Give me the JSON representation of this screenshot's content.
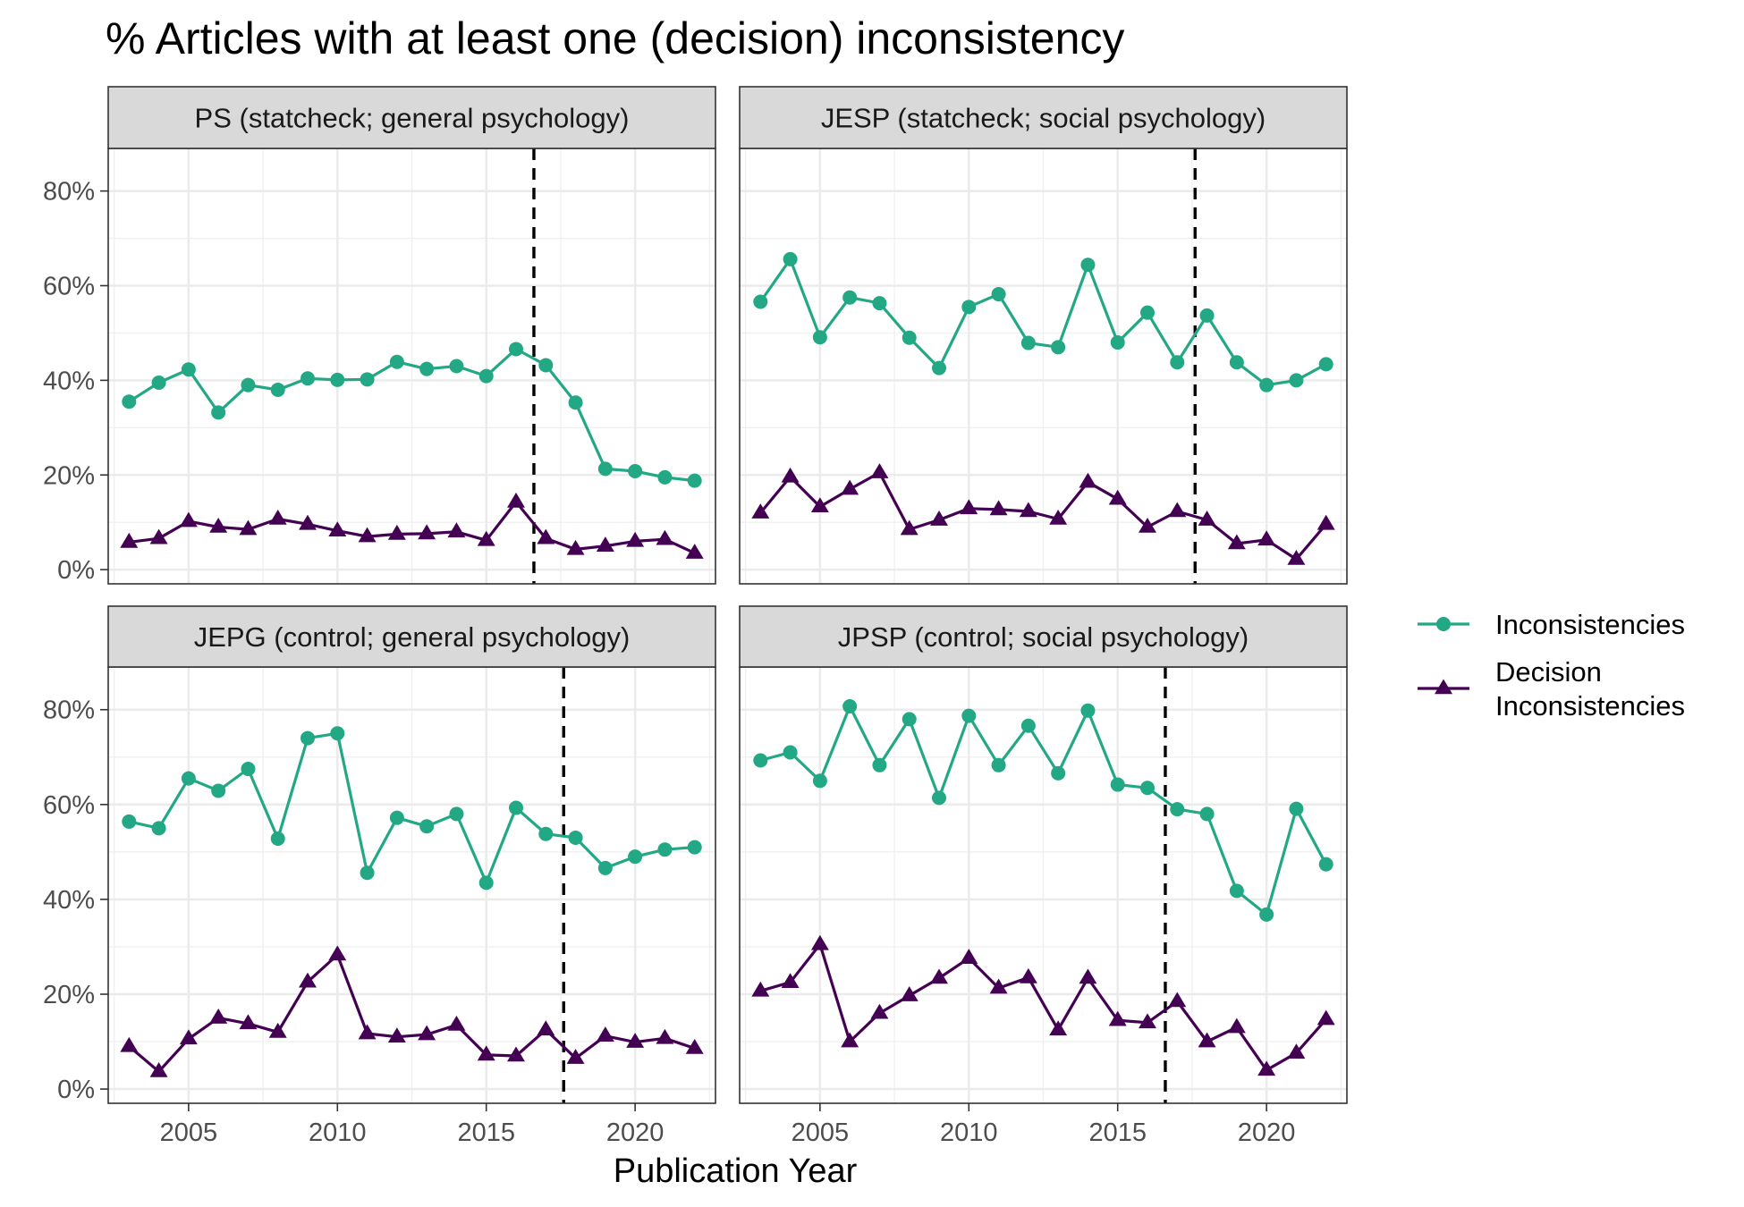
{
  "chart_data": {
    "type": "line",
    "title": "% Articles with at least one (decision) inconsistency",
    "xlabel": "Publication Year",
    "ylabel": "",
    "xlim": [
      2002.3,
      2022.7
    ],
    "ylim": [
      -3,
      89
    ],
    "x_ticks": [
      2005,
      2010,
      2015,
      2020
    ],
    "y_ticks": [
      0,
      20,
      40,
      60,
      80
    ],
    "y_tick_labels": [
      "0%",
      "20%",
      "40%",
      "60%",
      "80%"
    ],
    "grid": true,
    "legend_position": "right",
    "series_styles": [
      {
        "name": "Inconsistencies",
        "color": "#22A884",
        "marker": "circle"
      },
      {
        "name": "Decision Inconsistencies",
        "color": "#440154",
        "marker": "triangle"
      }
    ],
    "legend_labels": [
      [
        "Inconsistencies"
      ],
      [
        "Decision",
        "Inconsistencies"
      ]
    ],
    "years": [
      2003,
      2004,
      2005,
      2006,
      2007,
      2008,
      2009,
      2010,
      2011,
      2012,
      2013,
      2014,
      2015,
      2016,
      2017,
      2018,
      2019,
      2020,
      2021,
      2022
    ],
    "panels": [
      {
        "strip": "PS (statcheck; general psychology)",
        "vline": 2016.6,
        "inconsistencies": [
          35.5,
          39.5,
          42.3,
          33.2,
          39,
          38,
          40.4,
          40.1,
          40.2,
          43.9,
          42.4,
          43,
          40.9,
          46.6,
          43.2,
          35.3,
          21.3,
          20.8,
          19.5,
          18.8
        ],
        "decision": [
          5.8,
          6.6,
          10.2,
          9,
          8.5,
          10.7,
          9.6,
          8.2,
          7,
          7.5,
          7.6,
          8,
          6.2,
          14.3,
          6.6,
          4.3,
          5,
          6,
          6.4,
          3.5
        ]
      },
      {
        "strip": "JESP (statcheck; social psychology)",
        "vline": 2017.6,
        "inconsistencies": [
          56.6,
          65.6,
          49.1,
          57.5,
          56.3,
          49,
          42.6,
          55.5,
          58.2,
          47.9,
          47,
          64.4,
          48,
          54.3,
          43.8,
          53.7,
          43.8,
          39,
          40,
          43.4
        ],
        "decision": [
          12,
          19.6,
          13.3,
          17,
          20.5,
          8.5,
          10.5,
          12.9,
          12.7,
          12.3,
          10.7,
          18.5,
          14.9,
          9,
          12.3,
          10.5,
          5.5,
          6.3,
          2.2,
          9.6
        ]
      },
      {
        "strip": "JEPG (control; general psychology)",
        "vline": 2017.6,
        "inconsistencies": [
          56.4,
          55,
          65.5,
          62.9,
          67.5,
          52.8,
          74,
          75,
          45.6,
          57.2,
          55.4,
          58,
          43.5,
          59.3,
          53.8,
          53,
          46.6,
          49,
          50.5,
          51
        ],
        "decision": [
          9,
          3.7,
          10.6,
          15,
          13.8,
          12,
          22.6,
          28.3,
          11.7,
          11,
          11.5,
          13.5,
          7.2,
          7,
          12.5,
          6.5,
          11.2,
          9.9,
          10.7,
          8.6
        ]
      },
      {
        "strip": "JPSP (control; social psychology)",
        "vline": 2016.6,
        "inconsistencies": [
          69.3,
          71,
          65,
          80.7,
          68.3,
          78,
          61.4,
          78.7,
          68.3,
          76.6,
          66.6,
          79.8,
          64.2,
          63.5,
          59,
          58,
          41.8,
          36.8,
          59.1,
          47.4
        ],
        "decision": [
          20.7,
          22.5,
          30.5,
          10,
          16,
          19.7,
          23.4,
          27.6,
          21.3,
          23.5,
          12.5,
          23.4,
          14.5,
          14,
          18.5,
          10,
          13,
          4,
          7.6,
          14.7
        ]
      }
    ]
  }
}
